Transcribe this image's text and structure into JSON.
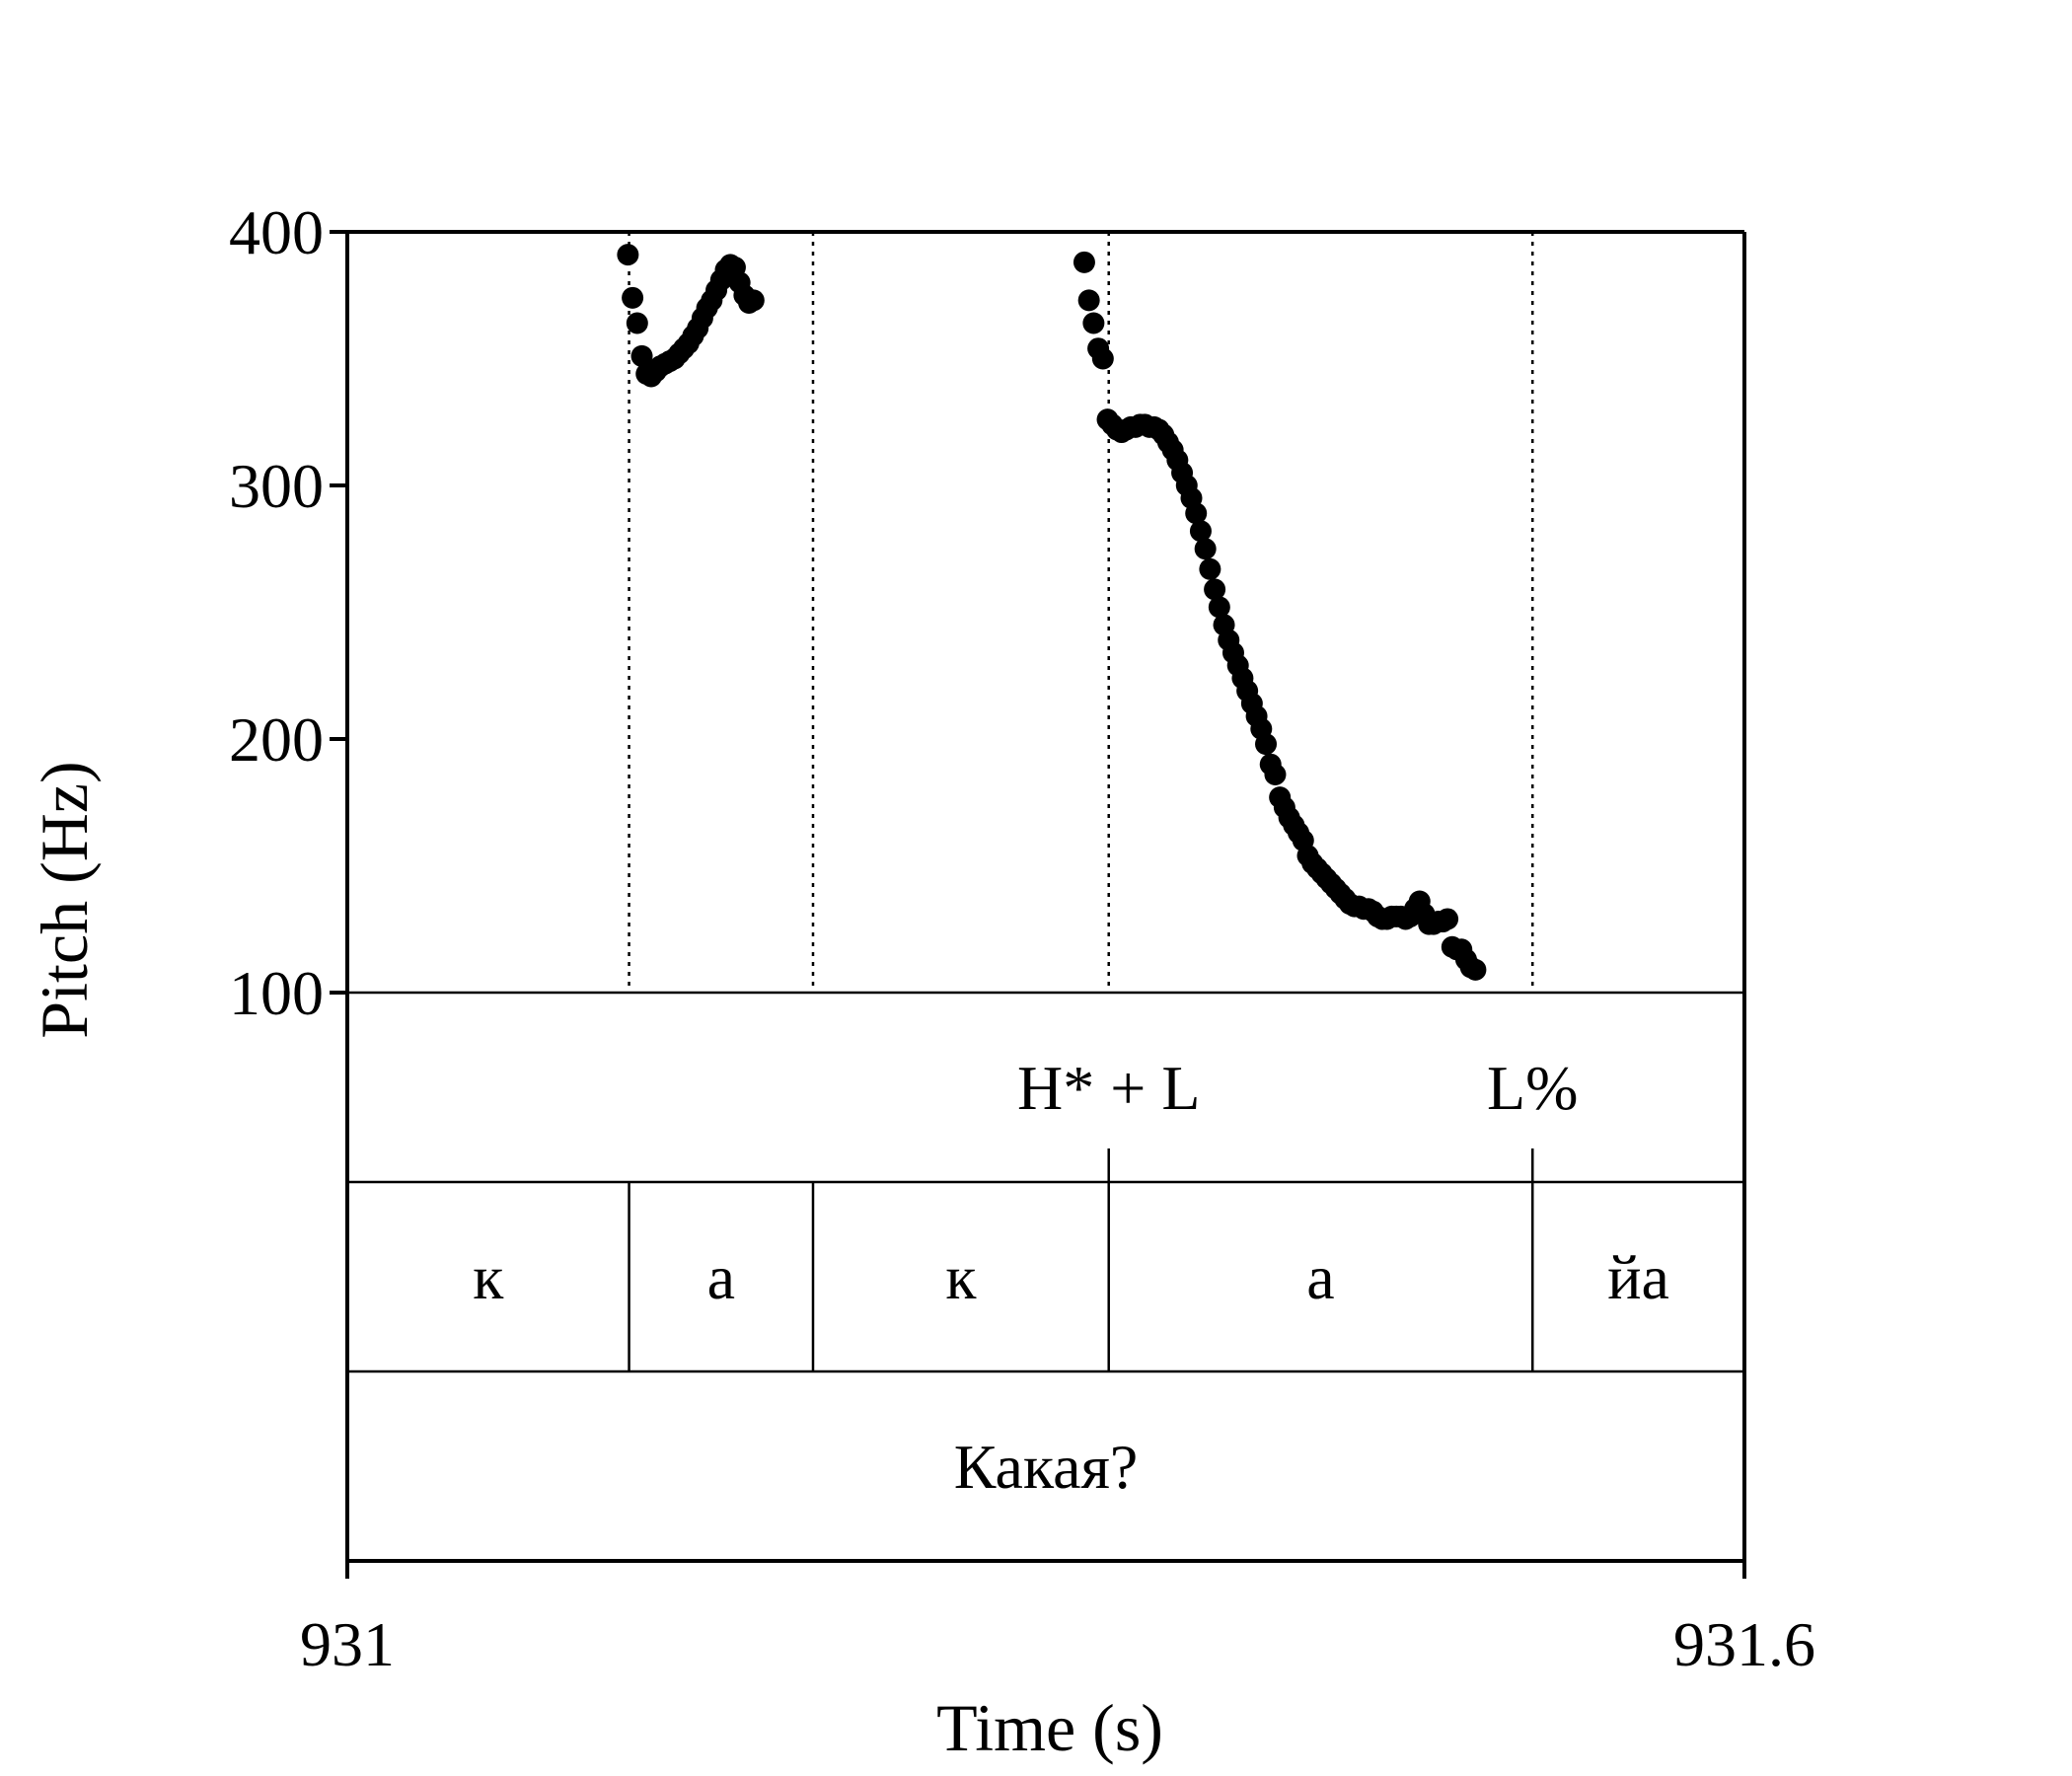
{
  "chart_data": {
    "type": "scatter",
    "xlabel": "Time (s)",
    "ylabel": "Pitch (Hz)",
    "xlim": [
      931,
      931.6
    ],
    "ylim": [
      100,
      400
    ],
    "x_ticks": [
      "931",
      "931.6"
    ],
    "y_ticks": [
      {
        "value": 400,
        "label": "400"
      },
      {
        "value": 300,
        "label": "300"
      },
      {
        "value": 200,
        "label": "200"
      },
      {
        "value": 100,
        "label": "100"
      }
    ],
    "boundaries": [
      931.121,
      931.2,
      931.327,
      931.509
    ],
    "tones": [
      {
        "t": 931.327,
        "label": "H* + L"
      },
      {
        "t": 931.509,
        "label": "L%"
      }
    ],
    "segments": [
      {
        "start": 931,
        "end": 931.121,
        "label": "к"
      },
      {
        "start": 931.121,
        "end": 931.2,
        "label": "а"
      },
      {
        "start": 931.2,
        "end": 931.327,
        "label": "к"
      },
      {
        "start": 931.327,
        "end": 931.509,
        "label": "а"
      },
      {
        "start": 931.509,
        "end": 931.6,
        "label": "йа"
      }
    ],
    "word": {
      "start": 931,
      "end": 931.6,
      "label": "Какая?"
    },
    "series": [
      {
        "points": [
          [
            931.1205,
            391
          ],
          [
            931.1225,
            374
          ],
          [
            931.1245,
            364
          ],
          [
            931.1265,
            351
          ],
          [
            931.1285,
            344
          ],
          [
            931.1305,
            343
          ],
          [
            931.1325,
            345
          ],
          [
            931.1345,
            347
          ],
          [
            931.1365,
            348
          ],
          [
            931.1385,
            349
          ],
          [
            931.1405,
            350
          ],
          [
            931.1425,
            352
          ],
          [
            931.1445,
            354
          ],
          [
            931.1465,
            356
          ],
          [
            931.1485,
            359
          ],
          [
            931.1505,
            362
          ],
          [
            931.1525,
            366
          ],
          [
            931.1545,
            370
          ],
          [
            931.1565,
            373
          ],
          [
            931.1585,
            377
          ],
          [
            931.1605,
            381
          ],
          [
            931.1625,
            385
          ],
          [
            931.1645,
            387
          ],
          [
            931.1665,
            386
          ],
          [
            931.1685,
            380
          ],
          [
            931.1705,
            375
          ],
          [
            931.1725,
            372
          ],
          [
            931.1745,
            373
          ]
        ]
      },
      {
        "points": [
          [
            931.3165,
            388
          ],
          [
            931.3185,
            373
          ],
          [
            931.3205,
            364
          ],
          [
            931.3225,
            354
          ],
          [
            931.3245,
            350
          ],
          [
            931.3265,
            326
          ],
          [
            931.3285,
            324
          ],
          [
            931.3305,
            322
          ],
          [
            931.3325,
            321
          ],
          [
            931.3345,
            322
          ],
          [
            931.3365,
            323
          ],
          [
            931.3385,
            323
          ],
          [
            931.3405,
            324
          ],
          [
            931.3425,
            324
          ],
          [
            931.3445,
            323
          ],
          [
            931.3465,
            323
          ],
          [
            931.3485,
            322
          ],
          [
            931.3505,
            320
          ],
          [
            931.3525,
            317
          ],
          [
            931.3545,
            314
          ],
          [
            931.3565,
            310
          ],
          [
            931.3585,
            305
          ],
          [
            931.3605,
            300
          ],
          [
            931.3625,
            295
          ],
          [
            931.3645,
            289
          ],
          [
            931.3665,
            282
          ],
          [
            931.3685,
            275
          ],
          [
            931.3705,
            267
          ],
          [
            931.3725,
            259
          ],
          [
            931.3745,
            252
          ],
          [
            931.3765,
            245
          ],
          [
            931.3785,
            239
          ],
          [
            931.3805,
            234
          ],
          [
            931.3825,
            229
          ],
          [
            931.3845,
            224
          ],
          [
            931.3865,
            219
          ],
          [
            931.3885,
            214
          ],
          [
            931.3905,
            209
          ],
          [
            931.3925,
            204
          ],
          [
            931.3945,
            198
          ],
          [
            931.3965,
            190
          ],
          [
            931.3985,
            186
          ],
          [
            931.4005,
            177
          ],
          [
            931.4025,
            173
          ],
          [
            931.4045,
            169
          ],
          [
            931.4065,
            166
          ],
          [
            931.4085,
            163
          ],
          [
            931.4105,
            160
          ],
          [
            931.4125,
            154
          ],
          [
            931.4145,
            151
          ],
          [
            931.4165,
            149
          ],
          [
            931.4185,
            147
          ],
          [
            931.4205,
            145
          ],
          [
            931.4225,
            143
          ],
          [
            931.4245,
            141
          ],
          [
            931.4265,
            139
          ],
          [
            931.4285,
            137
          ],
          [
            931.4305,
            135
          ],
          [
            931.4325,
            134
          ],
          [
            931.4345,
            134
          ],
          [
            931.4365,
            133
          ],
          [
            931.4385,
            133
          ],
          [
            931.4405,
            132
          ],
          [
            931.4425,
            130
          ],
          [
            931.4445,
            129
          ],
          [
            931.4465,
            129
          ],
          [
            931.4485,
            130
          ],
          [
            931.4505,
            130
          ],
          [
            931.4525,
            130
          ],
          [
            931.4545,
            129
          ],
          [
            931.4565,
            130
          ],
          [
            931.4585,
            133
          ],
          [
            931.4605,
            136
          ],
          [
            931.4625,
            131
          ],
          [
            931.4645,
            127
          ],
          [
            931.4665,
            127
          ],
          [
            931.4685,
            128
          ],
          [
            931.4705,
            128
          ],
          [
            931.4725,
            129
          ],
          [
            931.4745,
            118
          ],
          [
            931.4765,
            117
          ],
          [
            931.4785,
            117
          ],
          [
            931.4805,
            113
          ],
          [
            931.4825,
            110
          ],
          [
            931.4845,
            109
          ]
        ]
      }
    ]
  }
}
